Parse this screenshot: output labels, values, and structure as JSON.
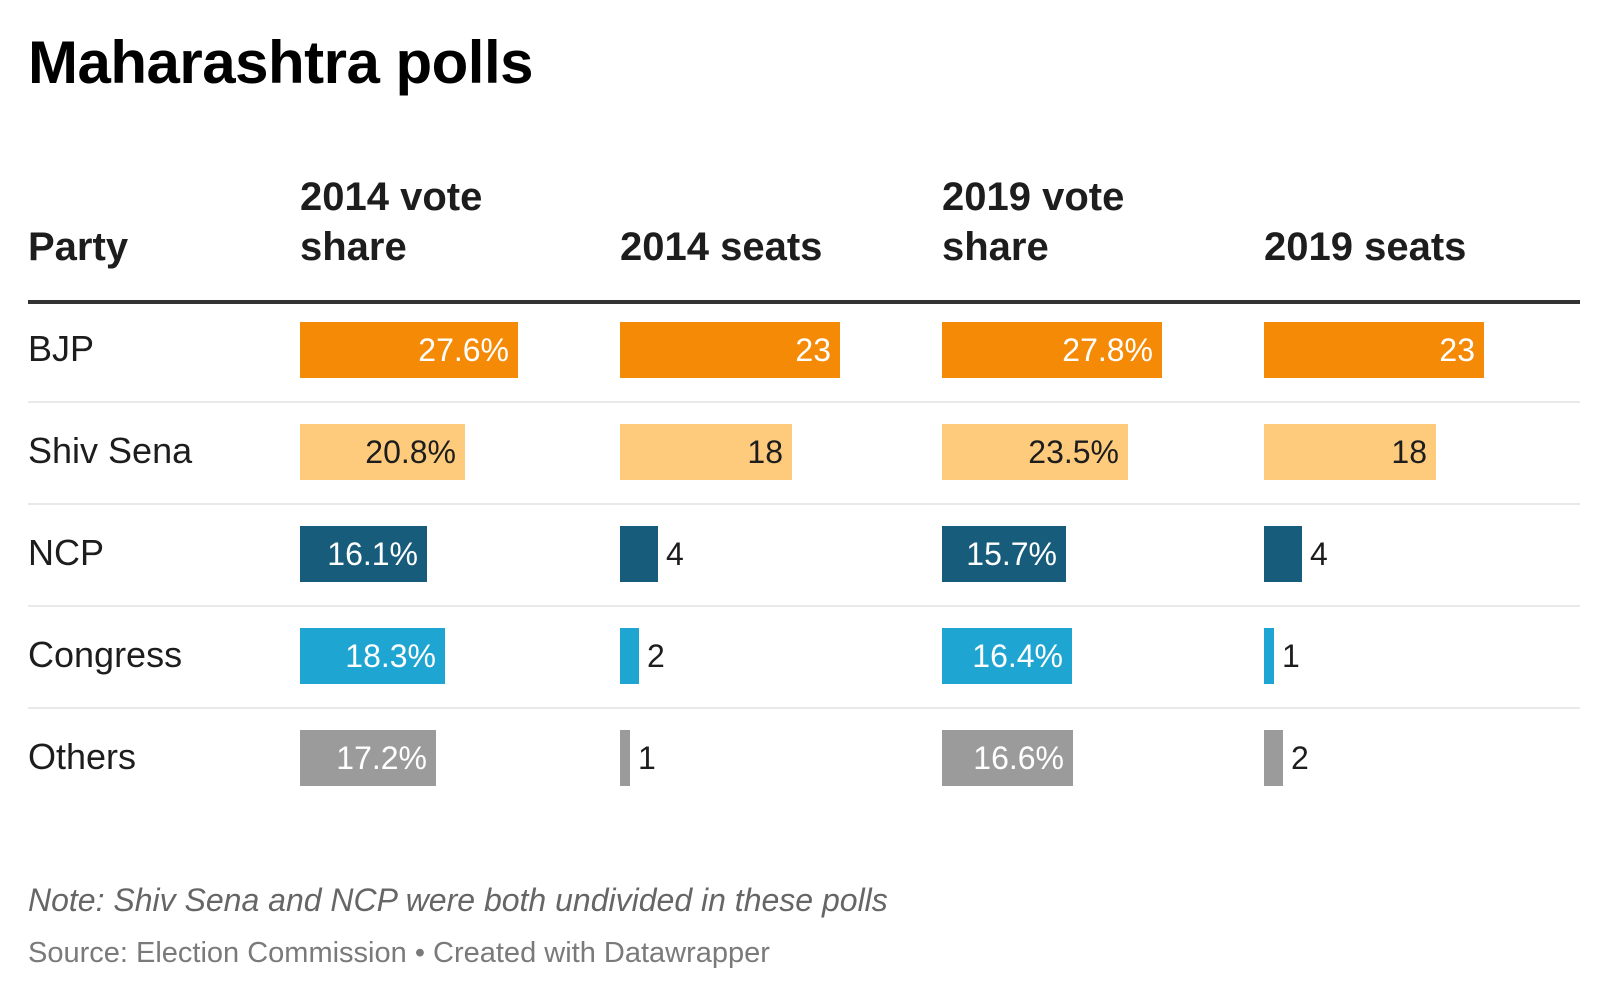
{
  "title": "Maharashtra polls",
  "chart_data": {
    "type": "table",
    "title": "Maharashtra polls",
    "columns": [
      {
        "key": "party",
        "label": [
          "Party"
        ]
      },
      {
        "key": "vote_2014",
        "label": [
          "2014 vote",
          "share"
        ],
        "suffix": "%",
        "max": 27.8
      },
      {
        "key": "seats_2014",
        "label": [
          "2014 seats"
        ],
        "suffix": "",
        "max": 23
      },
      {
        "key": "vote_2019",
        "label": [
          "2019 vote",
          "share"
        ],
        "suffix": "%",
        "max": 27.8
      },
      {
        "key": "seats_2019",
        "label": [
          "2019 seats"
        ],
        "suffix": "",
        "max": 23
      }
    ],
    "rows": [
      {
        "party": "BJP",
        "vote_2014": 27.6,
        "seats_2014": 23,
        "vote_2019": 27.8,
        "seats_2019": 23,
        "color": "#f58a07",
        "label_color": "#ffffff"
      },
      {
        "party": "Shiv Sena",
        "vote_2014": 20.8,
        "seats_2014": 18,
        "vote_2019": 23.5,
        "seats_2019": 18,
        "color": "#fecb7c",
        "label_color": "#1d1d1d"
      },
      {
        "party": "NCP",
        "vote_2014": 16.1,
        "seats_2014": 4,
        "vote_2019": 15.7,
        "seats_2019": 4,
        "color": "#175c7b",
        "label_color": "#ffffff"
      },
      {
        "party": "Congress",
        "vote_2014": 18.3,
        "seats_2014": 2,
        "vote_2019": 16.4,
        "seats_2019": 1,
        "color": "#1fa5d2",
        "label_color": "#ffffff"
      },
      {
        "party": "Others",
        "vote_2014": 17.2,
        "seats_2014": 1,
        "vote_2019": 16.6,
        "seats_2019": 2,
        "color": "#9b9b9b",
        "label_color": "#ffffff"
      }
    ]
  },
  "note": "Note: Shiv Sena and NCP were both undivided in these polls",
  "source": "Source: Election Commission • Created with Datawrapper"
}
